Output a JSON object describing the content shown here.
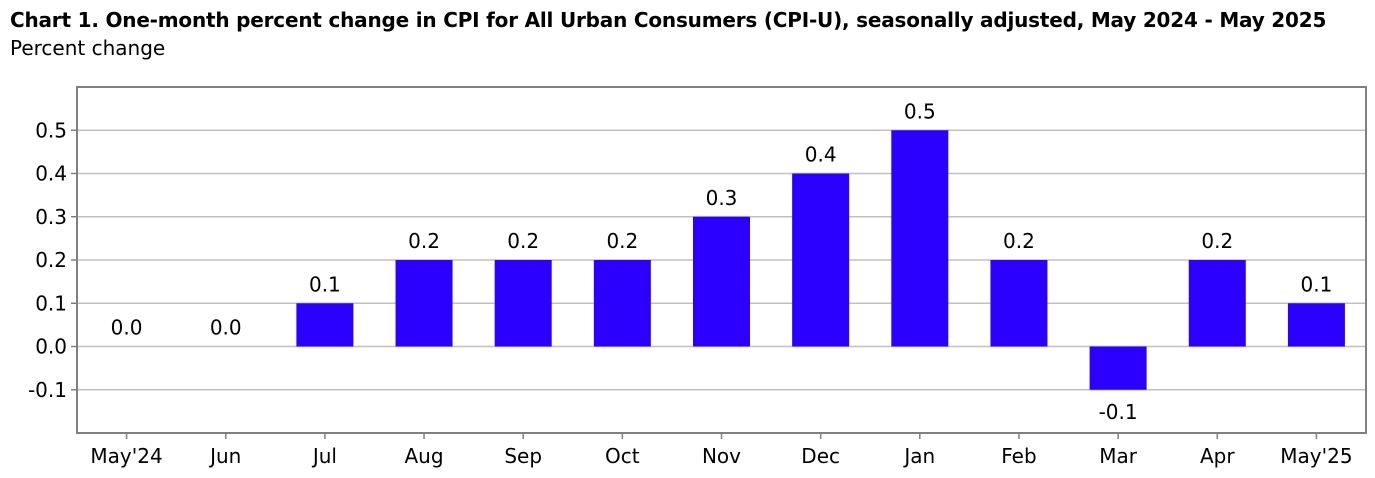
{
  "chart_data": {
    "type": "bar",
    "title": "Chart 1. One-month percent change in CPI for All Urban Consumers (CPI-U), seasonally adjusted, May 2024 - May 2025",
    "subtitle": "Percent change",
    "xlabel": "",
    "ylabel": "",
    "categories": [
      "May'24",
      "Jun",
      "Jul",
      "Aug",
      "Sep",
      "Oct",
      "Nov",
      "Dec",
      "Jan",
      "Feb",
      "Mar",
      "Apr",
      "May'25"
    ],
    "values": [
      0.0,
      0.0,
      0.1,
      0.2,
      0.2,
      0.2,
      0.3,
      0.4,
      0.5,
      0.2,
      -0.1,
      0.2,
      0.1
    ],
    "value_labels": [
      "0.0",
      "0.0",
      "0.1",
      "0.2",
      "0.2",
      "0.2",
      "0.3",
      "0.4",
      "0.5",
      "0.2",
      "-0.1",
      "0.2",
      "0.1"
    ],
    "ylim": [
      -0.2,
      0.6
    ],
    "yticks": [
      -0.1,
      0.0,
      0.1,
      0.2,
      0.3,
      0.4,
      0.5
    ],
    "ytick_labels": [
      "-0.1",
      "0.0",
      "0.1",
      "0.2",
      "0.3",
      "0.4",
      "0.5"
    ],
    "grid": true,
    "legend": "none",
    "bar_color": "#2b00ff",
    "grid_color": "#c0c0c0",
    "frame_color": "#808080"
  }
}
